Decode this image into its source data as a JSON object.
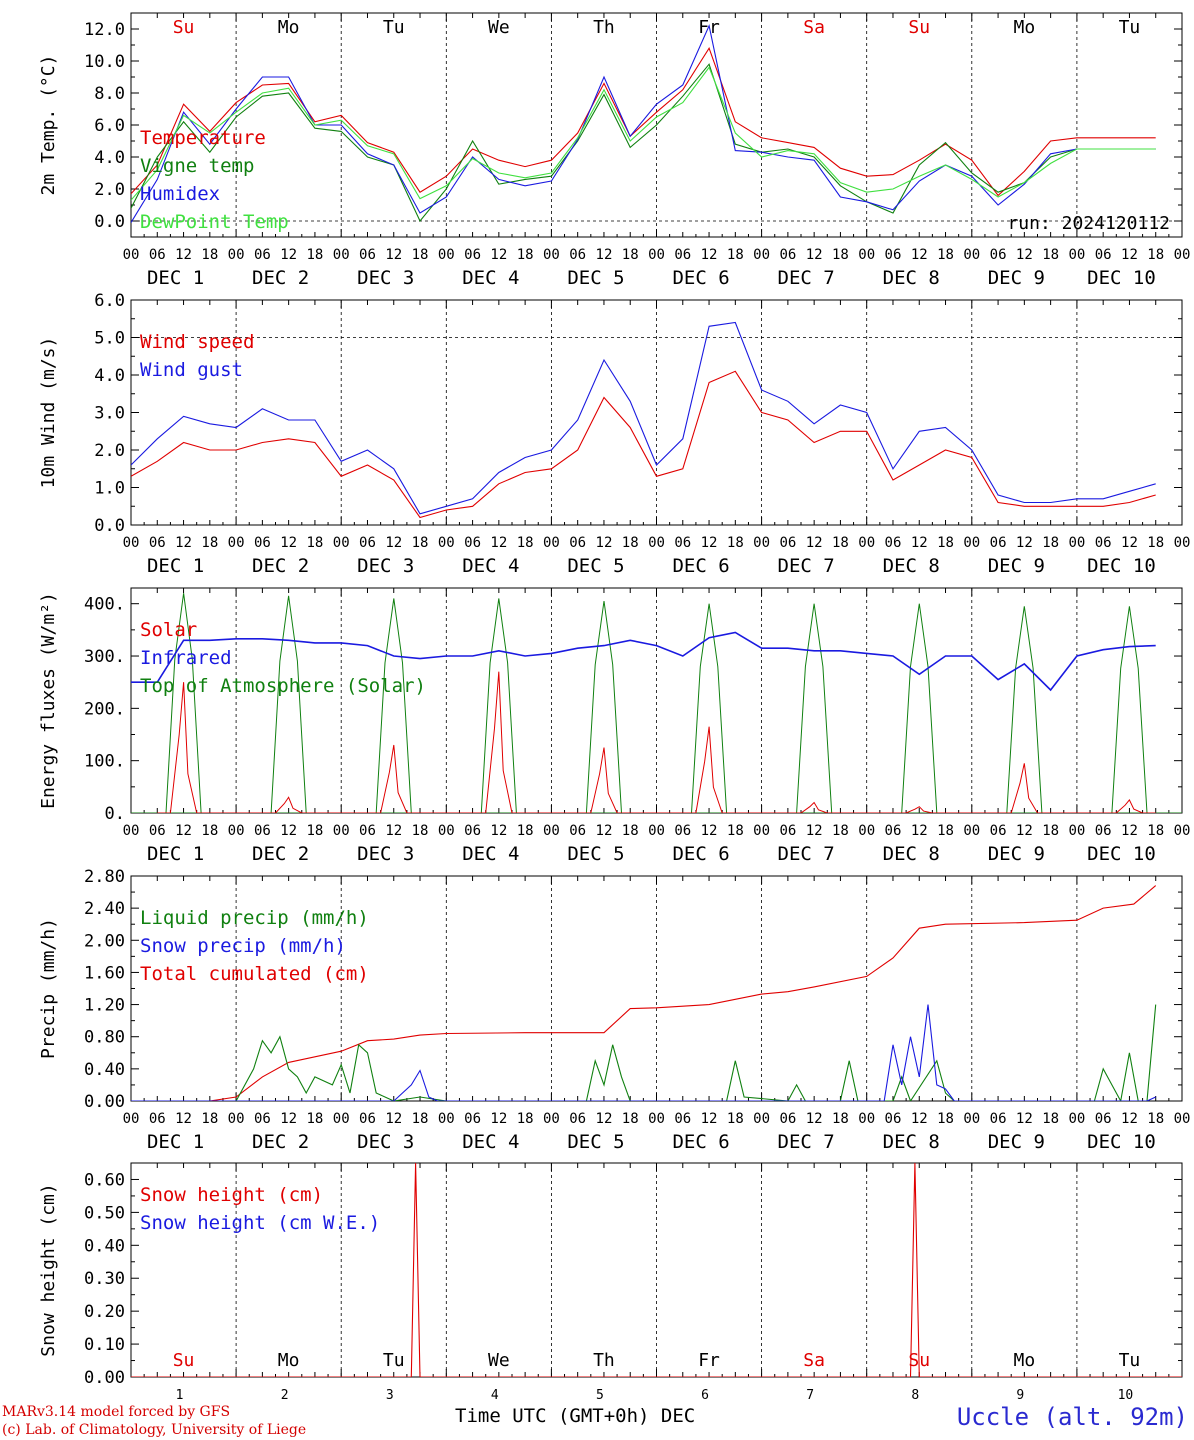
{
  "footer": {
    "credit_line1": "MARv3.14 model forced by GFS",
    "credit_line2": "(c) Lab. of Climatology, University of Liege",
    "xaxis_title": "Time UTC (GMT+0h)",
    "xaxis_unit": "DEC",
    "location": "Uccle (alt. 92m)"
  },
  "shared": {
    "weekdays": [
      "Su",
      "Mo",
      "Tu",
      "We",
      "Th",
      "Fr",
      "Sa",
      "Su",
      "Mo",
      "Tu"
    ],
    "weekend_color": "#e00000",
    "weekday_color": "#000000",
    "weekend_flags": [
      true,
      false,
      false,
      false,
      false,
      false,
      true,
      true,
      false,
      false
    ],
    "hour_ticks": [
      "00",
      "06",
      "12",
      "18"
    ],
    "date_labels": [
      "DEC 1",
      "DEC 2",
      "DEC 3",
      "DEC 4",
      "DEC 5",
      "DEC 6",
      "DEC 7",
      "DEC 8",
      "DEC 9",
      "DEC 10"
    ],
    "day_numbers": [
      "1",
      "2",
      "3",
      "4",
      "5",
      "6",
      "7",
      "8",
      "9",
      "10"
    ]
  },
  "chart_data": [
    {
      "type": "line",
      "ylabel": "2m Temp. (°C)",
      "ylim": [
        -1.0,
        13.0
      ],
      "yticks": [
        "12.0",
        "10.0",
        "8.0",
        "6.0",
        "4.0",
        "2.0",
        "0.0"
      ],
      "yticks_values": [
        12,
        10,
        8,
        6,
        4,
        2,
        0
      ],
      "hline": 0,
      "annotation": "run: 2024120112",
      "x_unit": "hours since DEC 1 00 UTC",
      "legend": [
        {
          "name": "Temperature",
          "color": "#e00000"
        },
        {
          "name": "Vigne temp",
          "color": "#108010"
        },
        {
          "name": "Humidex",
          "color": "#1a1ae0"
        },
        {
          "name": "DewPoint Temp",
          "color": "#40e040"
        }
      ],
      "series": [
        {
          "name": "Temperature",
          "color": "#e00000",
          "x": [
            0,
            6,
            12,
            18,
            24,
            30,
            36,
            42,
            48,
            54,
            60,
            66,
            72,
            78,
            84,
            90,
            96,
            102,
            108,
            114,
            120,
            126,
            132,
            138,
            144,
            150,
            156,
            162,
            168,
            174,
            180,
            186,
            192,
            198,
            204,
            210,
            216,
            222,
            228,
            234
          ],
          "values": [
            1.7,
            3.5,
            7.3,
            5.6,
            7.4,
            8.5,
            8.6,
            6.2,
            6.6,
            4.9,
            4.3,
            1.8,
            2.8,
            4.5,
            3.8,
            3.4,
            3.8,
            5.5,
            8.6,
            5.3,
            6.8,
            8.2,
            10.8,
            6.2,
            5.2,
            4.9,
            4.6,
            3.3,
            2.8,
            2.9,
            3.8,
            4.8,
            3.8,
            1.6,
            3.1,
            5.0,
            5.2,
            5.2,
            5.2,
            5.2
          ]
        },
        {
          "name": "Vigne temp",
          "color": "#108010",
          "x": [
            0,
            6,
            12,
            18,
            24,
            30,
            36,
            42,
            48,
            54,
            60,
            66,
            72,
            78,
            84,
            90,
            96,
            102,
            108,
            114,
            120,
            126,
            132,
            138,
            144,
            150,
            156,
            162,
            168,
            174,
            180,
            186,
            192,
            198,
            204,
            210,
            216,
            222,
            228,
            234
          ],
          "values": [
            0.8,
            4.0,
            6.2,
            4.3,
            6.5,
            7.8,
            8.0,
            5.8,
            5.6,
            4.0,
            3.5,
            0.0,
            2.0,
            5.0,
            2.3,
            2.6,
            2.8,
            5.0,
            7.9,
            4.6,
            6.0,
            7.8,
            9.8,
            4.8,
            4.3,
            4.5,
            4.0,
            2.2,
            1.2,
            0.5,
            3.5,
            4.9,
            3.0,
            1.8,
            2.4,
            4.0,
            4.5,
            4.5,
            4.5,
            4.5
          ]
        },
        {
          "name": "Humidex",
          "color": "#1a1ae0",
          "x": [
            0,
            6,
            12,
            18,
            24,
            30,
            36,
            42,
            48,
            54,
            60,
            66,
            72,
            78,
            84,
            90,
            96,
            102,
            108,
            114,
            120,
            126,
            132,
            138,
            144,
            150,
            156,
            162,
            168,
            174,
            180,
            186,
            192,
            198,
            204,
            210,
            216,
            222,
            228,
            234
          ],
          "values": [
            -0.1,
            2.6,
            6.8,
            4.8,
            7.0,
            9.0,
            9.0,
            6.0,
            6.0,
            4.2,
            3.5,
            0.5,
            1.5,
            4.0,
            2.6,
            2.2,
            2.5,
            5.1,
            9.0,
            5.3,
            7.3,
            8.5,
            12.2,
            4.4,
            4.3,
            4.0,
            3.8,
            1.5,
            1.2,
            0.7,
            2.5,
            3.5,
            2.8,
            1.0,
            2.3,
            4.2,
            4.5,
            4.5,
            4.5,
            4.5
          ]
        },
        {
          "name": "DewPoint Temp",
          "color": "#40e040",
          "x": [
            0,
            6,
            12,
            18,
            24,
            30,
            36,
            42,
            48,
            54,
            60,
            66,
            72,
            78,
            84,
            90,
            96,
            102,
            108,
            114,
            120,
            126,
            132,
            138,
            144,
            150,
            156,
            162,
            168,
            174,
            180,
            186,
            192,
            198,
            204,
            210,
            216,
            222,
            228,
            234
          ],
          "values": [
            1.3,
            3.2,
            6.6,
            5.5,
            6.8,
            8.0,
            8.3,
            6.0,
            6.3,
            4.7,
            4.2,
            1.4,
            2.2,
            3.9,
            3.0,
            2.7,
            3.0,
            5.2,
            8.2,
            5.0,
            6.5,
            7.4,
            9.6,
            5.5,
            4.0,
            4.4,
            4.2,
            2.4,
            1.8,
            2.0,
            2.8,
            3.5,
            2.6,
            1.5,
            2.4,
            3.6,
            4.5,
            4.5,
            4.5,
            4.5
          ]
        }
      ]
    },
    {
      "type": "line",
      "ylabel": "10m Wind (m/s)",
      "ylim": [
        0.0,
        6.0
      ],
      "yticks": [
        "6.0",
        "5.0",
        "4.0",
        "3.0",
        "2.0",
        "1.0",
        "0.0"
      ],
      "yticks_values": [
        6,
        5,
        4,
        3,
        2,
        1,
        0
      ],
      "hline": 5,
      "x_unit": "hours since DEC 1 00 UTC",
      "legend": [
        {
          "name": "Wind speed",
          "color": "#e00000"
        },
        {
          "name": "Wind gust",
          "color": "#1a1ae0"
        }
      ],
      "series": [
        {
          "name": "Wind speed",
          "color": "#e00000",
          "x": [
            0,
            6,
            12,
            18,
            24,
            30,
            36,
            42,
            48,
            54,
            60,
            66,
            72,
            78,
            84,
            90,
            96,
            102,
            108,
            114,
            120,
            126,
            132,
            138,
            144,
            150,
            156,
            162,
            168,
            174,
            180,
            186,
            192,
            198,
            204,
            210,
            216,
            222,
            228,
            234
          ],
          "values": [
            1.3,
            1.7,
            2.2,
            2.0,
            2.0,
            2.2,
            2.3,
            2.2,
            1.3,
            1.6,
            1.2,
            0.2,
            0.4,
            0.5,
            1.1,
            1.4,
            1.5,
            2.0,
            3.4,
            2.6,
            1.3,
            1.5,
            3.8,
            4.1,
            3.0,
            2.8,
            2.2,
            2.5,
            2.5,
            1.2,
            1.6,
            2.0,
            1.8,
            0.6,
            0.5,
            0.5,
            0.5,
            0.5,
            0.6,
            0.8
          ]
        },
        {
          "name": "Wind gust",
          "color": "#1a1ae0",
          "x": [
            0,
            6,
            12,
            18,
            24,
            30,
            36,
            42,
            48,
            54,
            60,
            66,
            72,
            78,
            84,
            90,
            96,
            102,
            108,
            114,
            120,
            126,
            132,
            138,
            144,
            150,
            156,
            162,
            168,
            174,
            180,
            186,
            192,
            198,
            204,
            210,
            216,
            222,
            228,
            234
          ],
          "values": [
            1.6,
            2.3,
            2.9,
            2.7,
            2.6,
            3.1,
            2.8,
            2.8,
            1.7,
            2.0,
            1.5,
            0.3,
            0.5,
            0.7,
            1.4,
            1.8,
            2.0,
            2.8,
            4.4,
            3.3,
            1.6,
            2.3,
            5.3,
            5.4,
            3.6,
            3.3,
            2.7,
            3.2,
            3.0,
            1.5,
            2.5,
            2.6,
            2.0,
            0.8,
            0.6,
            0.6,
            0.7,
            0.7,
            0.9,
            1.1
          ]
        }
      ]
    },
    {
      "type": "line",
      "ylabel": "Energy fluxes (W/m²)",
      "ylim": [
        0,
        430
      ],
      "yticks": [
        "400.",
        "300.",
        "200.",
        "100.",
        "0."
      ],
      "yticks_values": [
        400,
        300,
        200,
        100,
        0
      ],
      "x_unit": "hours since DEC 1 00 UTC",
      "legend": [
        {
          "name": "Solar",
          "color": "#e00000"
        },
        {
          "name": "Infrared",
          "color": "#1a1ae0"
        },
        {
          "name": "Top of Atmosphere (Solar)",
          "color": "#108010"
        }
      ],
      "solar_peak_hour": 12,
      "solar_peaks": [
        250,
        30,
        130,
        270,
        125,
        165,
        20,
        12,
        95,
        25
      ],
      "toa_peaks": [
        420,
        415,
        410,
        410,
        405,
        400,
        400,
        400,
        395,
        395
      ],
      "series": [
        {
          "name": "Infrared",
          "color": "#1a1ae0",
          "x": [
            0,
            6,
            12,
            18,
            24,
            30,
            36,
            42,
            48,
            54,
            60,
            66,
            72,
            78,
            84,
            90,
            96,
            102,
            108,
            114,
            120,
            126,
            132,
            138,
            144,
            150,
            156,
            162,
            168,
            174,
            180,
            186,
            192,
            198,
            204,
            210,
            216,
            222,
            228,
            234
          ],
          "values": [
            250,
            250,
            330,
            330,
            333,
            333,
            330,
            325,
            325,
            320,
            300,
            295,
            300,
            300,
            310,
            300,
            305,
            315,
            320,
            330,
            320,
            300,
            335,
            345,
            315,
            315,
            310,
            310,
            305,
            300,
            265,
            300,
            300,
            255,
            285,
            235,
            300,
            312,
            318,
            320
          ]
        }
      ]
    },
    {
      "type": "line",
      "ylabel": "Precip (mm/h)",
      "ylim": [
        0.0,
        2.8
      ],
      "yticks": [
        "2.80",
        "2.40",
        "2.00",
        "1.60",
        "1.20",
        "0.80",
        "0.40",
        "0.00"
      ],
      "yticks_values": [
        2.8,
        2.4,
        2.0,
        1.6,
        1.2,
        0.8,
        0.4,
        0.0
      ],
      "x_unit": "hours since DEC 1 00 UTC",
      "legend": [
        {
          "name": "Liquid precip (mm/h)",
          "color": "#108010"
        },
        {
          "name": "Snow precip (mm/h)",
          "color": "#1a1ae0"
        },
        {
          "name": "Total cumulated (cm)",
          "color": "#e00000"
        }
      ],
      "series": [
        {
          "name": "Total cumulated (cm)",
          "color": "#e00000",
          "x": [
            0,
            18,
            24,
            30,
            36,
            42,
            48,
            54,
            60,
            66,
            72,
            90,
            108,
            114,
            120,
            132,
            144,
            150,
            156,
            168,
            174,
            180,
            186,
            204,
            216,
            222,
            229,
            234
          ],
          "values": [
            0,
            0,
            0.05,
            0.3,
            0.48,
            0.55,
            0.62,
            0.75,
            0.77,
            0.82,
            0.84,
            0.85,
            0.85,
            1.15,
            1.16,
            1.2,
            1.33,
            1.36,
            1.42,
            1.55,
            1.78,
            2.15,
            2.2,
            2.22,
            2.25,
            2.4,
            2.45,
            2.68
          ]
        },
        {
          "name": "Liquid precip (mm/h)",
          "color": "#108010",
          "x": [
            0,
            24,
            28,
            30,
            32,
            34,
            36,
            38,
            40,
            42,
            46,
            48,
            50,
            52,
            54,
            56,
            58,
            60,
            66,
            72,
            104,
            106,
            108,
            110,
            112,
            114,
            118,
            136,
            138,
            140,
            150,
            152,
            154,
            162,
            164,
            166,
            174,
            176,
            178,
            184,
            186,
            188,
            190,
            192,
            196,
            220,
            222,
            224,
            226,
            228,
            230,
            232,
            234
          ],
          "values": [
            0,
            0,
            0.4,
            0.75,
            0.6,
            0.8,
            0.4,
            0.3,
            0.1,
            0.3,
            0.2,
            0.45,
            0.1,
            0.7,
            0.6,
            0.1,
            0.05,
            0.0,
            0.05,
            0.0,
            0.0,
            0.5,
            0.2,
            0.7,
            0.3,
            0.0,
            0.0,
            0.0,
            0.5,
            0.05,
            0.0,
            0.2,
            0.0,
            0.0,
            0.5,
            0.0,
            0.0,
            0.3,
            0.0,
            0.5,
            0.1,
            0.0,
            0.0,
            0.0,
            0.0,
            0.0,
            0.4,
            0.2,
            0.0,
            0.6,
            0.0,
            0.0,
            1.2
          ]
        },
        {
          "name": "Snow precip (mm/h)",
          "color": "#1a1ae0",
          "x": [
            0,
            60,
            62,
            64,
            66,
            68,
            70,
            172,
            174,
            176,
            178,
            180,
            182,
            184,
            186,
            188,
            190,
            232,
            234
          ],
          "values": [
            0,
            0,
            0.1,
            0.2,
            0.38,
            0.05,
            0,
            0,
            0.7,
            0.2,
            0.8,
            0.3,
            1.2,
            0.2,
            0.15,
            0.0,
            0.0,
            0.0,
            0.05
          ]
        }
      ]
    },
    {
      "type": "line",
      "ylabel": "Snow height (cm)",
      "ylim": [
        0.0,
        0.65
      ],
      "yticks": [
        "0.60",
        "0.50",
        "0.40",
        "0.30",
        "0.20",
        "0.10",
        "0.00"
      ],
      "yticks_values": [
        0.6,
        0.5,
        0.4,
        0.3,
        0.2,
        0.1,
        0.0
      ],
      "x_unit": "hours since DEC 1 00 UTC",
      "legend": [
        {
          "name": "Snow height (cm)",
          "color": "#e00000"
        },
        {
          "name": "Snow height (cm W.E.)",
          "color": "#1a1ae0"
        }
      ],
      "series": [
        {
          "name": "Snow height (cm)",
          "color": "#e00000",
          "x": [
            0,
            64,
            65,
            66,
            178,
            179,
            180,
            240
          ],
          "values": [
            0,
            0,
            0.65,
            0,
            0,
            0.65,
            0,
            0
          ]
        }
      ]
    }
  ]
}
